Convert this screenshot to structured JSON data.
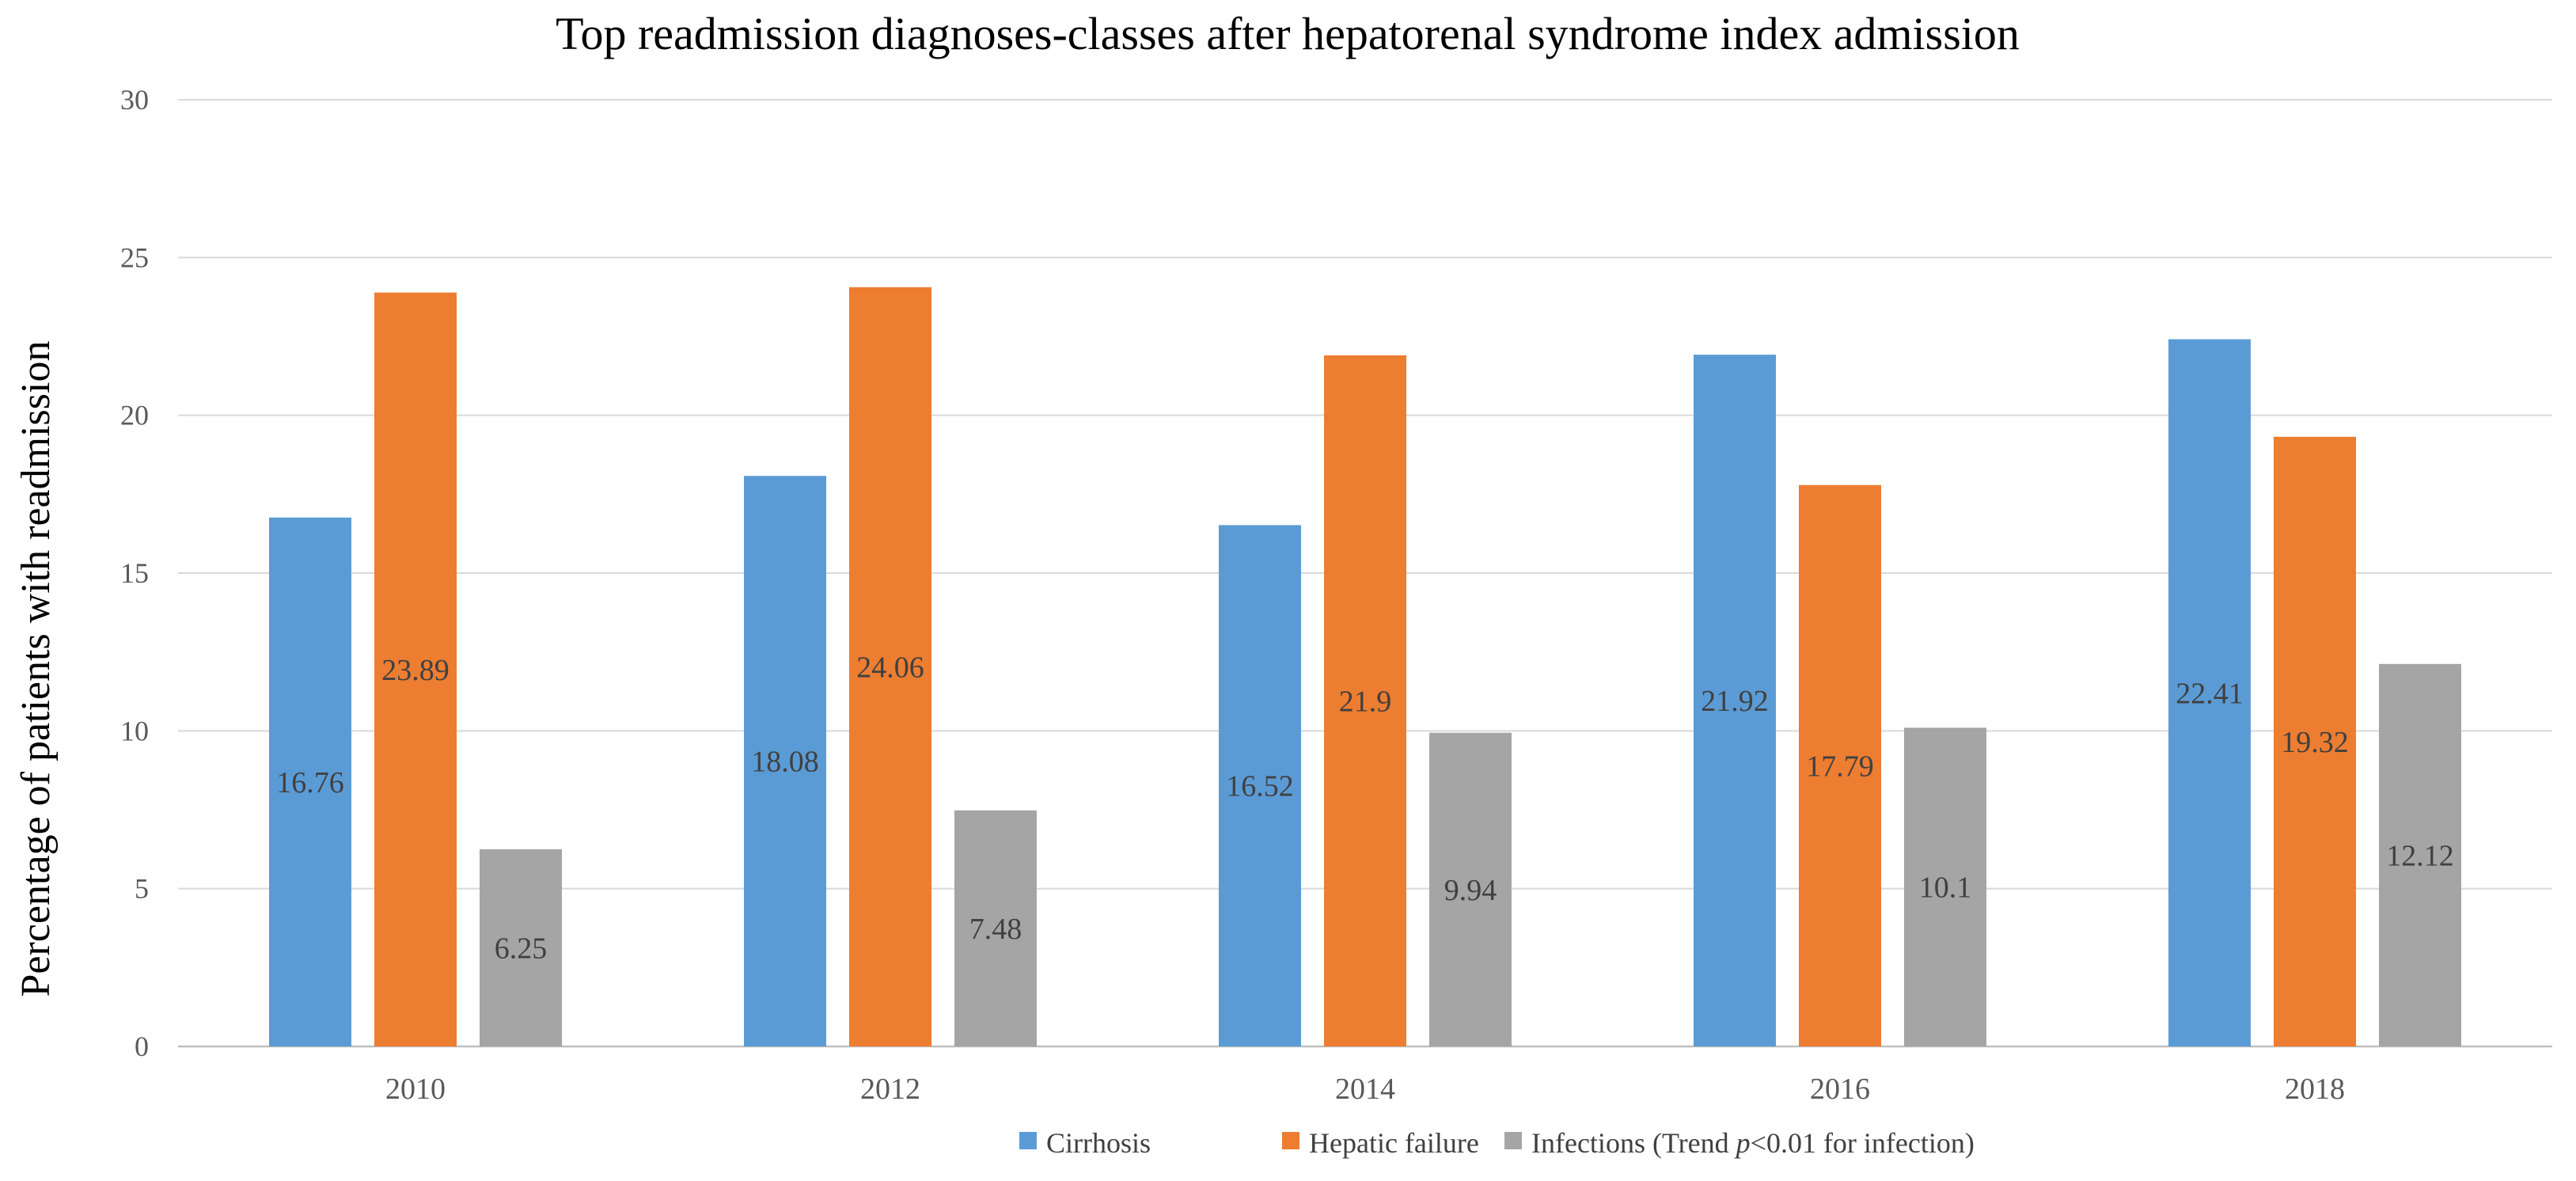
{
  "chart_data": {
    "type": "bar",
    "title": "Top readmission diagnoses-classes after hepatorenal syndrome index admission",
    "xlabel": "",
    "ylabel": "Percentage of patients with readmission",
    "ylim": [
      0,
      30
    ],
    "yticks": [
      0,
      5,
      10,
      15,
      20,
      25,
      30
    ],
    "grid": true,
    "legend_position": "bottom",
    "categories": [
      "2010",
      "2012",
      "2014",
      "2016",
      "2018"
    ],
    "series": [
      {
        "name": "Cirrhosis",
        "color": "#5B9BD5",
        "values": [
          16.76,
          18.08,
          16.52,
          21.92,
          22.41
        ],
        "labels": [
          "16.76",
          "18.08",
          "16.52",
          "21.92",
          "22.41"
        ]
      },
      {
        "name": "Hepatic failure",
        "color": "#ED7D31",
        "values": [
          23.89,
          24.06,
          21.9,
          17.79,
          19.32
        ],
        "labels": [
          "23.89",
          "24.06",
          "21.9",
          "17.79",
          "19.32"
        ]
      },
      {
        "name": "Infections",
        "color": "#A5A5A5",
        "values": [
          6.25,
          7.48,
          9.94,
          10.1,
          12.12
        ],
        "labels": [
          "6.25",
          "7.48",
          "9.94",
          "10.1",
          "12.12"
        ]
      }
    ],
    "legend_note": {
      "prefix": "(Trend ",
      "italic": "p",
      "suffix": "<0.01 for infection)"
    },
    "colors": {
      "grid": "#D9D9D9",
      "axis": "#BFBFBF"
    }
  }
}
